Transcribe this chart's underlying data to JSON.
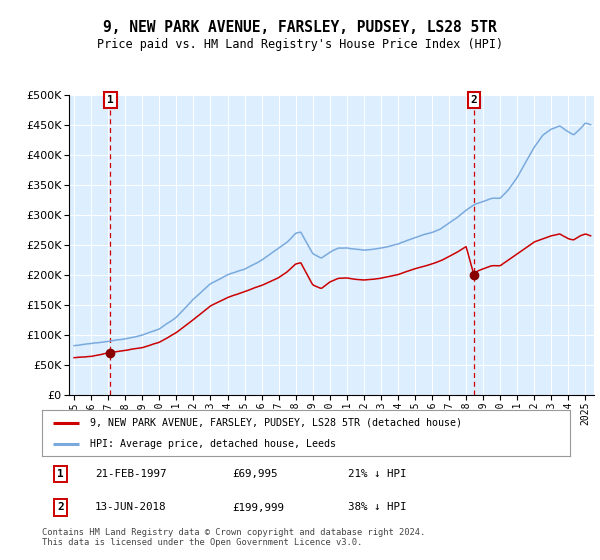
{
  "title": "9, NEW PARK AVENUE, FARSLEY, PUDSEY, LS28 5TR",
  "subtitle": "Price paid vs. HM Land Registry's House Price Index (HPI)",
  "legend_property": "9, NEW PARK AVENUE, FARSLEY, PUDSEY, LS28 5TR (detached house)",
  "legend_hpi": "HPI: Average price, detached house, Leeds",
  "annotation1_date": "21-FEB-1997",
  "annotation1_price": "£69,995",
  "annotation1_hpi": "21% ↓ HPI",
  "annotation2_date": "13-JUN-2018",
  "annotation2_price": "£199,999",
  "annotation2_hpi": "38% ↓ HPI",
  "footer": "Contains HM Land Registry data © Crown copyright and database right 2024.\nThis data is licensed under the Open Government Licence v3.0.",
  "property_color": "#cc0000",
  "hpi_color": "#7aaadd",
  "background_color": "#ddeeff",
  "vline_color": "#cc0000",
  "marker_color": "#880000",
  "ylim": [
    0,
    500000
  ],
  "xlim_start": 1994.7,
  "xlim_end": 2025.5,
  "sale1_x": 1997.13,
  "sale1_y": 69995,
  "sale2_x": 2018.45,
  "sale2_y": 199999,
  "hpi_anchors": [
    [
      1995.0,
      82000
    ],
    [
      1996.0,
      85000
    ],
    [
      1997.0,
      88000
    ],
    [
      1998.0,
      93000
    ],
    [
      1999.0,
      100000
    ],
    [
      2000.0,
      110000
    ],
    [
      2001.0,
      130000
    ],
    [
      2002.0,
      160000
    ],
    [
      2003.0,
      185000
    ],
    [
      2004.0,
      200000
    ],
    [
      2005.0,
      210000
    ],
    [
      2006.0,
      225000
    ],
    [
      2007.0,
      245000
    ],
    [
      2007.5,
      255000
    ],
    [
      2008.0,
      270000
    ],
    [
      2008.3,
      272000
    ],
    [
      2009.0,
      235000
    ],
    [
      2009.5,
      228000
    ],
    [
      2010.0,
      238000
    ],
    [
      2010.5,
      245000
    ],
    [
      2011.0,
      245000
    ],
    [
      2011.5,
      243000
    ],
    [
      2012.0,
      242000
    ],
    [
      2012.5,
      243000
    ],
    [
      2013.0,
      245000
    ],
    [
      2013.5,
      248000
    ],
    [
      2014.0,
      252000
    ],
    [
      2014.5,
      258000
    ],
    [
      2015.0,
      263000
    ],
    [
      2015.5,
      268000
    ],
    [
      2016.0,
      272000
    ],
    [
      2016.5,
      278000
    ],
    [
      2017.0,
      288000
    ],
    [
      2017.5,
      298000
    ],
    [
      2018.0,
      310000
    ],
    [
      2018.5,
      320000
    ],
    [
      2019.0,
      325000
    ],
    [
      2019.5,
      330000
    ],
    [
      2020.0,
      330000
    ],
    [
      2020.5,
      345000
    ],
    [
      2021.0,
      365000
    ],
    [
      2021.5,
      390000
    ],
    [
      2022.0,
      415000
    ],
    [
      2022.5,
      435000
    ],
    [
      2023.0,
      445000
    ],
    [
      2023.5,
      450000
    ],
    [
      2024.0,
      440000
    ],
    [
      2024.3,
      435000
    ],
    [
      2024.7,
      445000
    ],
    [
      2025.0,
      455000
    ],
    [
      2025.3,
      452000
    ]
  ],
  "prop_anchors": [
    [
      1995.0,
      62000
    ],
    [
      1996.0,
      64000
    ],
    [
      1997.13,
      69995
    ],
    [
      1998.0,
      73000
    ],
    [
      1999.0,
      78000
    ],
    [
      2000.0,
      87000
    ],
    [
      2001.0,
      103000
    ],
    [
      2002.0,
      125000
    ],
    [
      2003.0,
      148000
    ],
    [
      2004.0,
      162000
    ],
    [
      2005.0,
      172000
    ],
    [
      2006.0,
      182000
    ],
    [
      2007.0,
      195000
    ],
    [
      2007.5,
      205000
    ],
    [
      2008.0,
      218000
    ],
    [
      2008.3,
      220000
    ],
    [
      2009.0,
      183000
    ],
    [
      2009.5,
      177000
    ],
    [
      2010.0,
      188000
    ],
    [
      2010.5,
      194000
    ],
    [
      2011.0,
      194000
    ],
    [
      2011.5,
      192000
    ],
    [
      2012.0,
      191000
    ],
    [
      2012.5,
      192000
    ],
    [
      2013.0,
      194000
    ],
    [
      2013.5,
      197000
    ],
    [
      2014.0,
      200000
    ],
    [
      2014.5,
      205000
    ],
    [
      2015.0,
      210000
    ],
    [
      2015.5,
      214000
    ],
    [
      2016.0,
      218000
    ],
    [
      2016.5,
      223000
    ],
    [
      2017.0,
      230000
    ],
    [
      2017.5,
      238000
    ],
    [
      2018.0,
      247000
    ],
    [
      2018.45,
      199999
    ],
    [
      2018.6,
      205000
    ],
    [
      2019.0,
      210000
    ],
    [
      2019.5,
      215000
    ],
    [
      2020.0,
      215000
    ],
    [
      2020.5,
      225000
    ],
    [
      2021.0,
      235000
    ],
    [
      2021.5,
      245000
    ],
    [
      2022.0,
      255000
    ],
    [
      2022.5,
      260000
    ],
    [
      2023.0,
      265000
    ],
    [
      2023.5,
      268000
    ],
    [
      2024.0,
      260000
    ],
    [
      2024.3,
      258000
    ],
    [
      2024.7,
      265000
    ],
    [
      2025.0,
      268000
    ],
    [
      2025.3,
      265000
    ]
  ]
}
